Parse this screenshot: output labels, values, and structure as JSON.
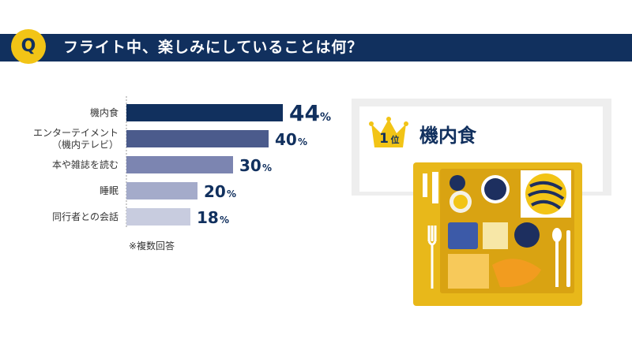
{
  "header": {
    "badge": "Q",
    "title": "フライト中、楽しみにしていることは何？"
  },
  "chart_data": {
    "type": "bar",
    "orientation": "horizontal",
    "categories": [
      [
        "機内食"
      ],
      [
        "エンターテイメント",
        "（機内テレビ）"
      ],
      [
        "本や雑誌を読む"
      ],
      [
        "睡眠"
      ],
      [
        "同行者との会話"
      ]
    ],
    "values": [
      44,
      40,
      30,
      20,
      18
    ],
    "unit": "%",
    "colors": [
      "#11305e",
      "#4b5b8c",
      "#7c85b1",
      "#a4abca",
      "#c8ccdf"
    ],
    "xlim": [
      0,
      44
    ],
    "grid": false,
    "legend": "none"
  },
  "note": "※複数回答",
  "ranking": {
    "rank_number": "1",
    "rank_suffix": "位",
    "label": "機内食"
  },
  "colors": {
    "navy": "#11305e",
    "gold": "#f2c416",
    "tray": "#e8b81a"
  },
  "icons": [
    "crown-icon",
    "meal-tray-illustration"
  ]
}
